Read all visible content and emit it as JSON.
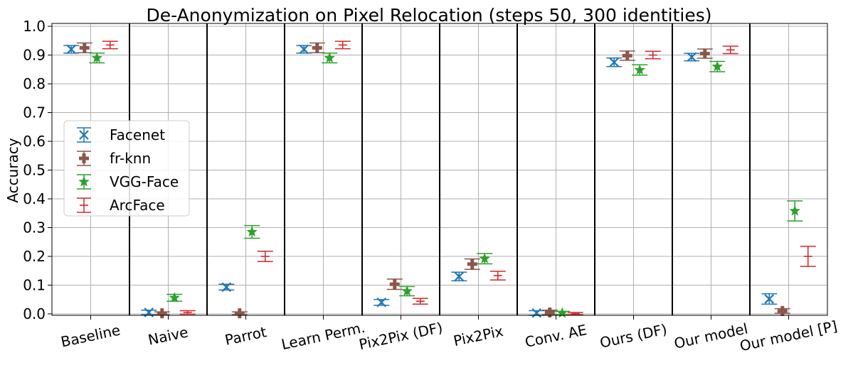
{
  "chart_data": {
    "type": "scatter",
    "title": "De-Anonymization on Pixel Relocation (steps 50, 300 identities)",
    "xlabel": "",
    "ylabel": "Accuracy",
    "ylim": [
      0.0,
      1.0
    ],
    "yticks": [
      "0.0",
      "0.1",
      "0.2",
      "0.3",
      "0.4",
      "0.5",
      "0.6",
      "0.7",
      "0.8",
      "0.9",
      "1.0"
    ],
    "grid": true,
    "legend_position": "center-left",
    "categories": [
      "Baseline",
      "Naive",
      "Parrot",
      "Learn Perm.",
      "Pix2Pix (DF)",
      "Pix2Pix",
      "Conv. AE",
      "Ours (DF)",
      "Our model",
      "Our model [P]"
    ],
    "series": [
      {
        "name": "Facenet",
        "color": "#1f77b4",
        "marker": "x",
        "values": [
          0.92,
          0.005,
          0.093,
          0.92,
          0.04,
          0.13,
          0.003,
          0.875,
          0.893,
          0.052
        ],
        "errors": [
          0.013,
          0.008,
          0.01,
          0.013,
          0.01,
          0.015,
          0.008,
          0.015,
          0.013,
          0.018
        ]
      },
      {
        "name": "fr-knn",
        "color": "#8c564b",
        "marker": "plus",
        "values": [
          0.925,
          0.002,
          0.002,
          0.925,
          0.103,
          0.173,
          0.005,
          0.898,
          0.905,
          0.01
        ],
        "errors": [
          0.017,
          0.005,
          0.005,
          0.017,
          0.018,
          0.018,
          0.008,
          0.016,
          0.016,
          0.008
        ]
      },
      {
        "name": "VGG-Face",
        "color": "#2ca02c",
        "marker": "star",
        "values": [
          0.89,
          0.056,
          0.285,
          0.89,
          0.079,
          0.192,
          0.003,
          0.848,
          0.86,
          0.358
        ],
        "errors": [
          0.017,
          0.012,
          0.022,
          0.017,
          0.016,
          0.018,
          0.006,
          0.018,
          0.018,
          0.035
        ]
      },
      {
        "name": "ArcFace",
        "color": "#d62728",
        "marker": "hline",
        "values": [
          0.935,
          0.005,
          0.2,
          0.935,
          0.044,
          0.133,
          0.001,
          0.9,
          0.918,
          0.2
        ],
        "errors": [
          0.013,
          0.006,
          0.018,
          0.013,
          0.01,
          0.015,
          0.004,
          0.013,
          0.013,
          0.035
        ]
      }
    ]
  }
}
